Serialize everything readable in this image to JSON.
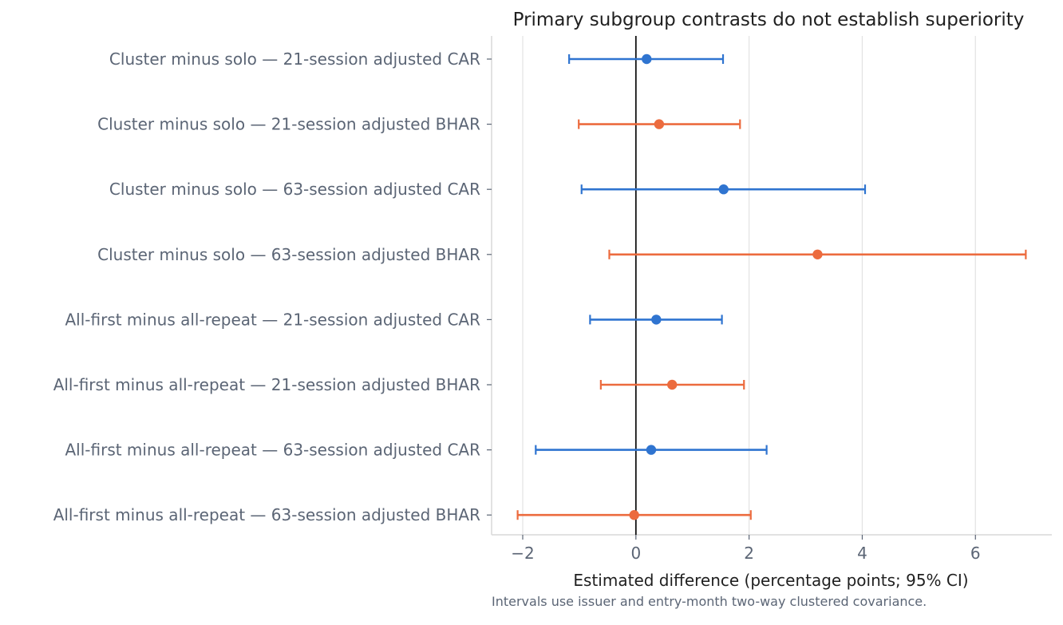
{
  "chart_data": {
    "type": "scatter",
    "subtype": "forest-plot",
    "title": "Primary subgroup contrasts do not establish superiority",
    "xlabel": "Estimated difference (percentage points; 95% CI)",
    "ylabel": "",
    "footnote": "Intervals use issuer and entry-month two-way clustered covariance.",
    "xlim": [
      -2.55,
      7.35
    ],
    "xticks": [
      -2,
      0,
      2,
      4,
      6
    ],
    "xtick_labels": [
      "−2",
      "0",
      "2",
      "4",
      "6"
    ],
    "reference_line": 0,
    "grid": "vertical",
    "legend": "none",
    "colors": {
      "CAR": "#2f74d0",
      "BHAR": "#ec6b3e",
      "reference": "#111111",
      "grid": "#e4e4e4",
      "spine": "#d9d9d9"
    },
    "rows": [
      {
        "label": "Cluster minus solo — 21-session adjusted CAR",
        "measure": "CAR",
        "estimate": 0.19,
        "ci_low": -1.18,
        "ci_high": 1.54
      },
      {
        "label": "Cluster minus solo — 21-session adjusted BHAR",
        "measure": "BHAR",
        "estimate": 0.41,
        "ci_low": -1.01,
        "ci_high": 1.84
      },
      {
        "label": "Cluster minus solo — 63-session adjusted CAR",
        "measure": "CAR",
        "estimate": 1.55,
        "ci_low": -0.96,
        "ci_high": 4.05
      },
      {
        "label": "Cluster minus solo — 63-session adjusted BHAR",
        "measure": "BHAR",
        "estimate": 3.21,
        "ci_low": -0.47,
        "ci_high": 6.89
      },
      {
        "label": "All-first minus all-repeat — 21-session adjusted CAR",
        "measure": "CAR",
        "estimate": 0.36,
        "ci_low": -0.81,
        "ci_high": 1.52
      },
      {
        "label": "All-first minus all-repeat — 21-session adjusted BHAR",
        "measure": "BHAR",
        "estimate": 0.64,
        "ci_low": -0.62,
        "ci_high": 1.91
      },
      {
        "label": "All-first minus all-repeat — 63-session adjusted CAR",
        "measure": "CAR",
        "estimate": 0.27,
        "ci_low": -1.77,
        "ci_high": 2.31
      },
      {
        "label": "All-first minus all-repeat — 63-session adjusted BHAR",
        "measure": "BHAR",
        "estimate": -0.03,
        "ci_low": -2.09,
        "ci_high": 2.03
      }
    ]
  }
}
